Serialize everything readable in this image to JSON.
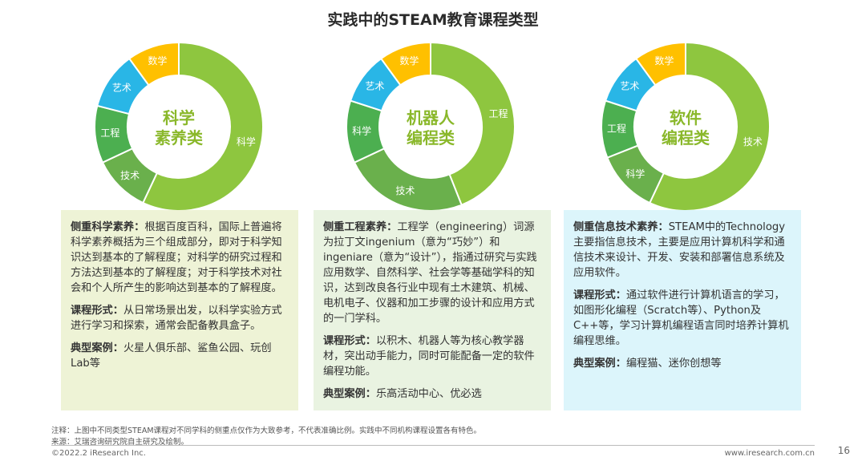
{
  "title": "实践中的STEAM教育课程类型",
  "chart_data": [
    {
      "type": "pie",
      "center_label_lines": [
        "科学",
        "素养类"
      ],
      "slices": [
        {
          "label": "科学",
          "value": 57,
          "color": "#8ec63f"
        },
        {
          "label": "技术",
          "value": 11,
          "color": "#6ab04c"
        },
        {
          "label": "工程",
          "value": 11,
          "color": "#4caf50"
        },
        {
          "label": "艺术",
          "value": 11,
          "color": "#29b6e6"
        },
        {
          "label": "数学",
          "value": 10,
          "color": "#ffc000"
        }
      ]
    },
    {
      "type": "pie",
      "center_label_lines": [
        "机器人",
        "编程类"
      ],
      "slices": [
        {
          "label": "工程",
          "value": 44,
          "color": "#8ec63f"
        },
        {
          "label": "技术",
          "value": 24,
          "color": "#6ab04c"
        },
        {
          "label": "科学",
          "value": 12,
          "color": "#4caf50"
        },
        {
          "label": "艺术",
          "value": 10,
          "color": "#29b6e6"
        },
        {
          "label": "数学",
          "value": 10,
          "color": "#ffc000"
        }
      ]
    },
    {
      "type": "pie",
      "center_label_lines": [
        "软件",
        "编程类"
      ],
      "slices": [
        {
          "label": "技术",
          "value": 57,
          "color": "#8ec63f"
        },
        {
          "label": "科学",
          "value": 12,
          "color": "#6ab04c"
        },
        {
          "label": "工程",
          "value": 11,
          "color": "#4caf50"
        },
        {
          "label": "艺术",
          "value": 10,
          "color": "#29b6e6"
        },
        {
          "label": "数学",
          "value": 10,
          "color": "#ffc000"
        }
      ]
    }
  ],
  "cards": [
    {
      "sections": [
        {
          "heading": "侧重科学素养：",
          "text": "根据百度百科，国际上普遍将科学素养概括为三个组成部分，即对于科学知识达到基本的了解程度；对科学的研究过程和方法达到基本的了解程度；对于科学技术对社会和个人所产生的影响达到基本的了解程度。"
        },
        {
          "heading": "课程形式：",
          "text": "从日常场景出发，以科学实验方式进行学习和探索，通常会配备教具盒子。"
        },
        {
          "heading": "典型案例：",
          "text": "火星人俱乐部、鲨鱼公园、玩创Lab等"
        }
      ]
    },
    {
      "sections": [
        {
          "heading": "侧重工程素养：",
          "text": "工程学（engineering）词源为拉丁文ingenium（意为“巧妙”）和ingeniare（意为“设计”），指通过研究与实践应用数学、自然科学、社会学等基础学科的知识，达到改良各行业中现有土木建筑、机械、电机电子、仪器和加工步骤的设计和应用方式的一门学科。"
        },
        {
          "heading": "课程形式：",
          "text": "以积木、机器人等为核心教学器材，突出动手能力，同时可能配备一定的软件编程功能。"
        },
        {
          "heading": "典型案例：",
          "text": "乐高活动中心、优必选"
        }
      ]
    },
    {
      "sections": [
        {
          "heading": "侧重信息技术素养：",
          "text": "STEAM中的Technology主要指信息技术，主要是应用计算机科学和通信技术来设计、开发、安装和部署信息系统及应用软件。"
        },
        {
          "heading": "课程形式：",
          "text": "通过软件进行计算机语言的学习，如图形化编程（Scratch等）、Python及C++等，学习计算机编程语言同时培养计算机编程思维。"
        },
        {
          "heading": "典型案例：",
          "text": "编程猫、迷你创想等"
        }
      ]
    }
  ],
  "note": "注释：上图中不同类型STEAM课程对不同学科的侧重点仅作为大致参考，不代表准确比例。实践中不同机构课程设置各有特色。",
  "source": "来源：艾瑞咨询研究院自主研究及绘制。",
  "footer_left": "©2022.2 iResearch Inc.",
  "footer_right": "www.iresearch.com.cn",
  "page_number": "16"
}
